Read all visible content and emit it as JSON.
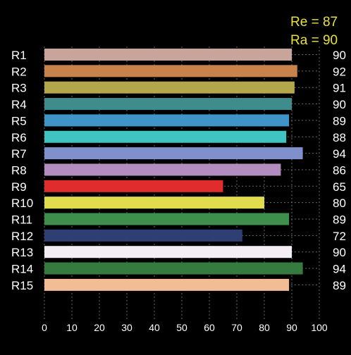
{
  "header": {
    "re_label": "Re = 87",
    "ra_label": "Ra = 90"
  },
  "chart_data": {
    "type": "bar",
    "orientation": "horizontal",
    "categories": [
      "R1",
      "R2",
      "R3",
      "R4",
      "R5",
      "R6",
      "R7",
      "R8",
      "R9",
      "R10",
      "R11",
      "R12",
      "R13",
      "R14",
      "R15"
    ],
    "values": [
      90,
      92,
      91,
      90,
      89,
      88,
      94,
      86,
      65,
      80,
      89,
      72,
      90,
      94,
      89
    ],
    "value_labels": [
      "90",
      "92",
      "91",
      "90",
      "89",
      "88",
      "94",
      "86",
      "65",
      "80",
      "89",
      "72",
      "90",
      "94",
      "89"
    ],
    "colors": [
      "#c9a49a",
      "#c8824c",
      "#b3a74c",
      "#3f8c8c",
      "#3f95c8",
      "#40c4c2",
      "#8090cc",
      "#b48dc0",
      "#e02c2c",
      "#e1dc4e",
      "#3f8f4c",
      "#2f3f74",
      "#f4eef4",
      "#357a3f",
      "#f2bd95"
    ],
    "xlim": [
      0,
      100
    ],
    "xticks": [
      "0",
      "10",
      "20",
      "30",
      "40",
      "50",
      "60",
      "70",
      "80",
      "90",
      "100"
    ],
    "grid": true,
    "grid_style": "dotted",
    "background": "#000000"
  }
}
